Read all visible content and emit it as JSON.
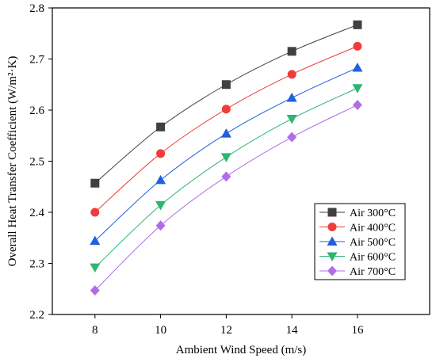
{
  "chart_data": {
    "type": "line",
    "title": "",
    "xlabel": "Ambient Wind Speed (m/s)",
    "ylabel": "Overall Heat Transfer Coefficient (W/m²·K)",
    "x": [
      8,
      10,
      12,
      14,
      16
    ],
    "x_ticks": [
      8,
      10,
      12,
      14,
      16
    ],
    "xlim": [
      6.7,
      18.2
    ],
    "ylim": [
      2.2,
      2.8
    ],
    "y_ticks": [
      2.2,
      2.3,
      2.4,
      2.5,
      2.6,
      2.7,
      2.8
    ],
    "y_tick_labels": [
      "2.2",
      "2.3",
      "2.4",
      "2.5",
      "2.6",
      "2.7",
      "2.8"
    ],
    "grid": false,
    "legend_position": "lower-right",
    "series": [
      {
        "name": "Air 300°C",
        "color": "#404040",
        "marker": "square",
        "values": [
          2.457,
          2.567,
          2.65,
          2.715,
          2.767
        ]
      },
      {
        "name": "Air 400°C",
        "color": "#f03c3c",
        "marker": "circle",
        "values": [
          2.4,
          2.515,
          2.602,
          2.67,
          2.725
        ]
      },
      {
        "name": "Air 500°C",
        "color": "#1f5fe0",
        "marker": "triangle-up",
        "values": [
          2.344,
          2.463,
          2.554,
          2.624,
          2.683
        ]
      },
      {
        "name": "Air 600°C",
        "color": "#2bb673",
        "marker": "triangle-down",
        "values": [
          2.292,
          2.414,
          2.508,
          2.583,
          2.643
        ]
      },
      {
        "name": "Air 700°C",
        "color": "#b06ee6",
        "marker": "diamond",
        "values": [
          2.247,
          2.374,
          2.47,
          2.547,
          2.61
        ]
      }
    ]
  }
}
